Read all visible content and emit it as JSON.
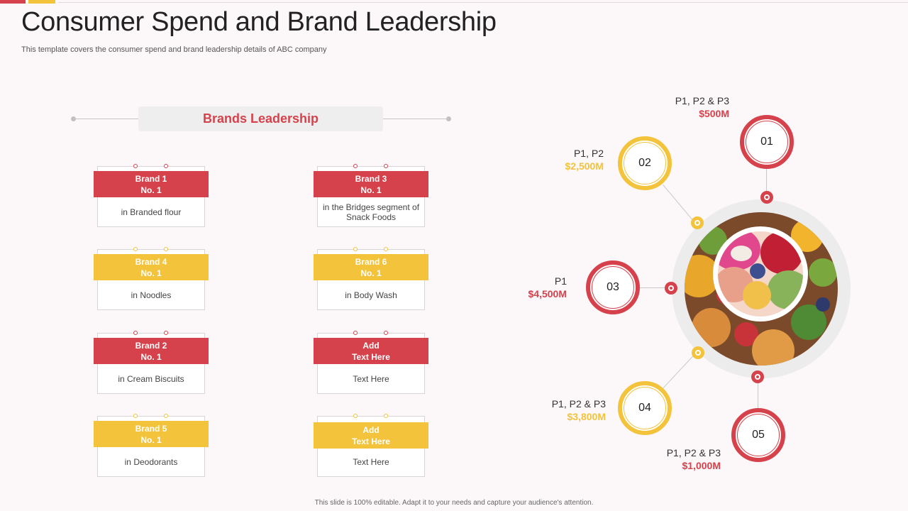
{
  "colors": {
    "red": "#d6424b",
    "yellow": "#f2c33b"
  },
  "header": {
    "title": "Consumer Spend and Brand Leadership",
    "subtitle": "This template covers the consumer spend and brand leadership details of ABC company"
  },
  "section": {
    "title": "Brands Leadership"
  },
  "brands": [
    {
      "line1": "Brand 1",
      "line2": "No. 1",
      "desc": "in Branded flour",
      "color": "red"
    },
    {
      "line1": "Brand 3",
      "line2": "No. 1",
      "desc": "in the Bridges segment of Snack Foods",
      "color": "red"
    },
    {
      "line1": "Brand 4",
      "line2": "No. 1",
      "desc": "in Noodles",
      "color": "yellow"
    },
    {
      "line1": "Brand 6",
      "line2": "No. 1",
      "desc": "in Body Wash",
      "color": "yellow"
    },
    {
      "line1": "Brand 2",
      "line2": "No. 1",
      "desc": "in Cream Biscuits",
      "color": "red"
    },
    {
      "line1": "Add",
      "line2": "Text Here",
      "desc": "Text Here",
      "color": "red"
    },
    {
      "line1": "Brand 5",
      "line2": "No. 1",
      "desc": "in Deodorants",
      "color": "yellow"
    },
    {
      "line1": "Add",
      "line2": "Text Here",
      "desc": "Text Here",
      "color": "yellow"
    }
  ],
  "spend": [
    {
      "num": "01",
      "label": "P1, P2 & P3",
      "value": "$500M",
      "color": "red"
    },
    {
      "num": "02",
      "label": "P1, P2",
      "value": "$2,500M",
      "color": "yellow"
    },
    {
      "num": "03",
      "label": "P1",
      "value": "$4,500M",
      "color": "red"
    },
    {
      "num": "04",
      "label": "P1, P2 & P3",
      "value": "$3,800M",
      "color": "yellow"
    },
    {
      "num": "05",
      "label": "P1, P2 & P3",
      "value": "$1,000M",
      "color": "red"
    }
  ],
  "footer": {
    "text": "This slide is 100% editable. Adapt it to your needs and capture your audience's attention."
  }
}
